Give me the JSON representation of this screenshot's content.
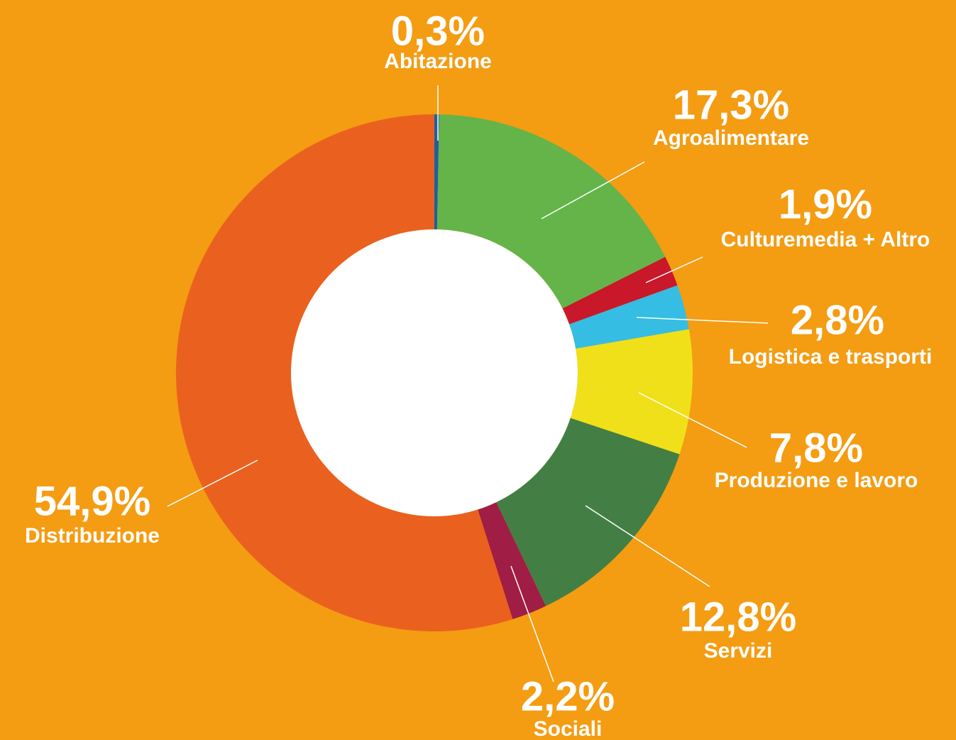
{
  "chart_data": {
    "type": "donut",
    "categories": [
      "Abitazione",
      "Agroalimentare",
      "Culturemedia + Altro",
      "Logistica e trasporti",
      "Produzione e lavoro",
      "Servizi",
      "Sociali",
      "Distribuzione"
    ],
    "values": [
      0.3,
      17.3,
      1.9,
      2.8,
      7.8,
      12.8,
      2.2,
      54.9
    ],
    "value_labels": [
      "0,3%",
      "17,3%",
      "1,9%",
      "2,8%",
      "7,8%",
      "12,8%",
      "2,2%",
      "54,9%"
    ],
    "colors": [
      "#1f5fa0",
      "#64b44a",
      "#c8182a",
      "#35bde3",
      "#f0e01a",
      "#437f45",
      "#a01d45",
      "#ea611f"
    ]
  }
}
